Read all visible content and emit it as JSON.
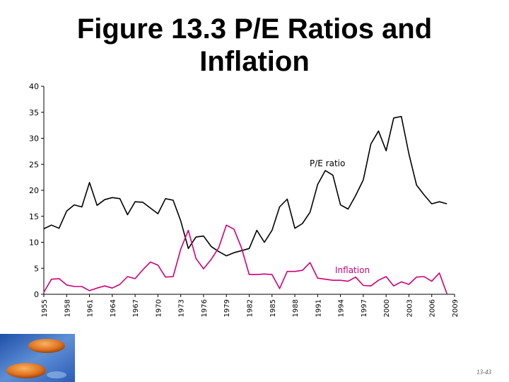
{
  "slide": {
    "title_line1": "Figure 13.3 P/E Ratios and",
    "title_line2": "Inflation",
    "slide_number": "13-43"
  },
  "colors": {
    "pe_series": "#000000",
    "inflation_series": "#cc0077",
    "axis": "#000000",
    "tick_text": "#000000"
  },
  "chart_data": {
    "type": "line",
    "title": "",
    "xlabel": "",
    "ylabel": "",
    "xlim": [
      1955,
      2009
    ],
    "ylim": [
      0,
      40
    ],
    "grid": false,
    "legend": "inline labels",
    "x_ticks": [
      1955,
      1958,
      1961,
      1964,
      1967,
      1970,
      1973,
      1976,
      1979,
      1982,
      1985,
      1988,
      1991,
      1994,
      1997,
      2000,
      2003,
      2006,
      2009
    ],
    "y_ticks": [
      0,
      5,
      10,
      15,
      20,
      25,
      30,
      35,
      40
    ],
    "series": [
      {
        "name": "P/E ratio",
        "x": [
          1955,
          1956,
          1957,
          1958,
          1959,
          1960,
          1961,
          1962,
          1963,
          1964,
          1965,
          1966,
          1967,
          1968,
          1969,
          1970,
          1971,
          1972,
          1973,
          1974,
          1975,
          1976,
          1977,
          1978,
          1979,
          1980,
          1981,
          1982,
          1983,
          1984,
          1985,
          1986,
          1987,
          1988,
          1989,
          1990,
          1991,
          1992,
          1993,
          1994,
          1995,
          1996,
          1997,
          1998,
          1999,
          2000,
          2001,
          2002,
          2003,
          2004,
          2005,
          2006,
          2007,
          2008
        ],
        "values": [
          12.6,
          13.3,
          12.7,
          16.0,
          17.2,
          16.8,
          21.5,
          17.1,
          18.2,
          18.6,
          18.4,
          15.3,
          17.8,
          17.7,
          16.6,
          15.5,
          18.4,
          18.1,
          14.1,
          8.8,
          11.0,
          11.2,
          9.2,
          8.2,
          7.4,
          8.0,
          8.4,
          8.8,
          12.3,
          10.0,
          12.3,
          16.8,
          18.3,
          12.7,
          13.6,
          15.8,
          21.1,
          23.8,
          22.9,
          17.2,
          16.4,
          19.0,
          22.0,
          28.9,
          31.4,
          27.6,
          33.9,
          34.2,
          27.0,
          21.0,
          19.1,
          17.4,
          17.8,
          17.4
        ],
        "inline_label": "P/E ratio"
      },
      {
        "name": "Inflation",
        "x": [
          1955,
          1956,
          1957,
          1958,
          1959,
          1960,
          1961,
          1962,
          1963,
          1964,
          1965,
          1966,
          1967,
          1968,
          1969,
          1970,
          1971,
          1972,
          1973,
          1974,
          1975,
          1976,
          1977,
          1978,
          1979,
          1980,
          1981,
          1982,
          1983,
          1984,
          1985,
          1986,
          1987,
          1988,
          1989,
          1990,
          1991,
          1992,
          1993,
          1994,
          1995,
          1996,
          1997,
          1998,
          1999,
          2000,
          2001,
          2002,
          2003,
          2004,
          2005,
          2006,
          2007,
          2008
        ],
        "values": [
          0.4,
          2.9,
          3.0,
          1.8,
          1.5,
          1.5,
          0.7,
          1.2,
          1.6,
          1.2,
          1.9,
          3.4,
          3.0,
          4.7,
          6.2,
          5.6,
          3.3,
          3.4,
          8.7,
          12.3,
          6.9,
          4.9,
          6.7,
          9.0,
          13.3,
          12.5,
          8.9,
          3.8,
          3.8,
          3.9,
          3.8,
          1.1,
          4.4,
          4.4,
          4.6,
          6.1,
          3.1,
          2.9,
          2.7,
          2.7,
          2.5,
          3.3,
          1.7,
          1.6,
          2.7,
          3.4,
          1.6,
          2.4,
          1.9,
          3.3,
          3.4,
          2.5,
          4.1,
          0.1
        ],
        "inline_label": "Inflation"
      }
    ]
  }
}
